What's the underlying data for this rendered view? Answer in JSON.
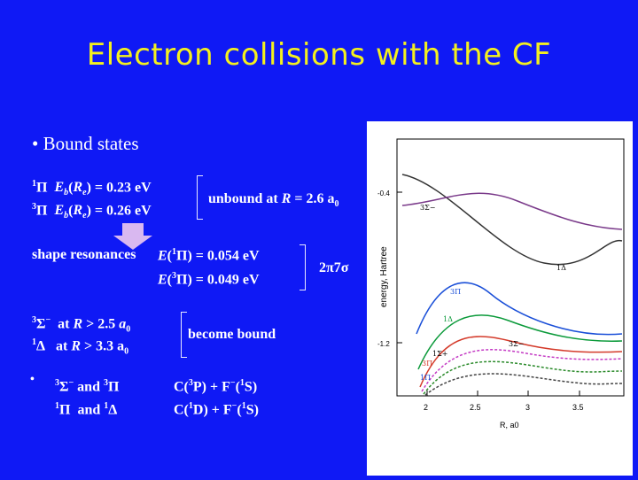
{
  "slide": {
    "title": "Electron collisions with the CF",
    "bullet_main": "•  Bound states",
    "bound_1": "1Π  Eb(Re) = 0.23 eV",
    "bound_2": "3Π  Eb(Re) = 0.26 eV",
    "unbound": "unbound at R = 2.6 a0",
    "shape_label": "shape resonances",
    "shape_1": "E(1Π) = 0.054 eV",
    "shape_2": "E(3Π) = 0.049 eV",
    "orbital": "2π7σ",
    "state_a": "3Σ−  at R > 2.5 a0",
    "state_b": "1Δ  at R > 3.3 a0",
    "become_bound": "become bound",
    "small_bullet": "•",
    "asym_1a": "3Σ− and 3Π",
    "asym_1b": "C(3P) + F−(1S)",
    "asym_2a": "1Π  and 1Δ",
    "asym_2b": "C(1D) + F−(1S)"
  },
  "figure": {
    "ylabel": "energy, Hartree",
    "xlabel": "R, a0",
    "x_ticks": [
      "2",
      "2.5",
      "3",
      "3.5"
    ],
    "y_ticks": [
      "-0.4",
      "-1.2"
    ],
    "state_labels": [
      "3Σ−",
      "3Π",
      "1Δ",
      "3Σ−",
      "1Δ",
      "1Σ+",
      "3Π",
      "1Π"
    ],
    "colors": {
      "background": "#0f19f5",
      "title": "#f4f01e",
      "arrow": "#d9b8f0"
    }
  }
}
